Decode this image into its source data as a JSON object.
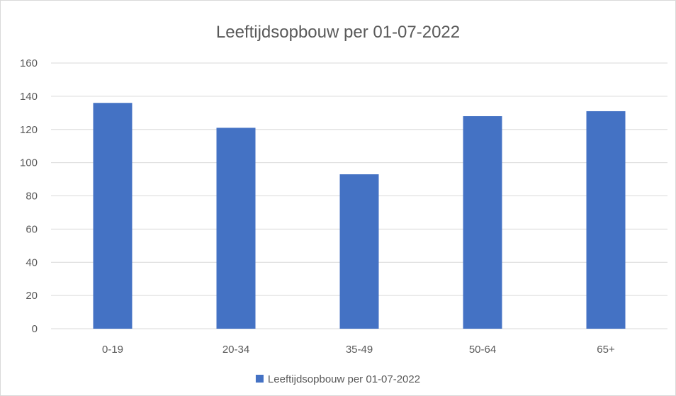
{
  "chart_data": {
    "type": "bar",
    "title": "Leeftijdsopbouw per 01-07-2022",
    "xlabel": "",
    "ylabel": "",
    "categories": [
      "0-19",
      "20-34",
      "35-49",
      "50-64",
      "65+"
    ],
    "series": [
      {
        "name": "Leeftijdsopbouw per 01-07-2022",
        "values": [
          136,
          121,
          93,
          128,
          131
        ],
        "color": "#4472c4"
      }
    ],
    "ylim": [
      0,
      160
    ],
    "yticks": [
      0,
      20,
      40,
      60,
      80,
      100,
      120,
      140,
      160
    ],
    "grid": true,
    "legend": "bottom"
  }
}
